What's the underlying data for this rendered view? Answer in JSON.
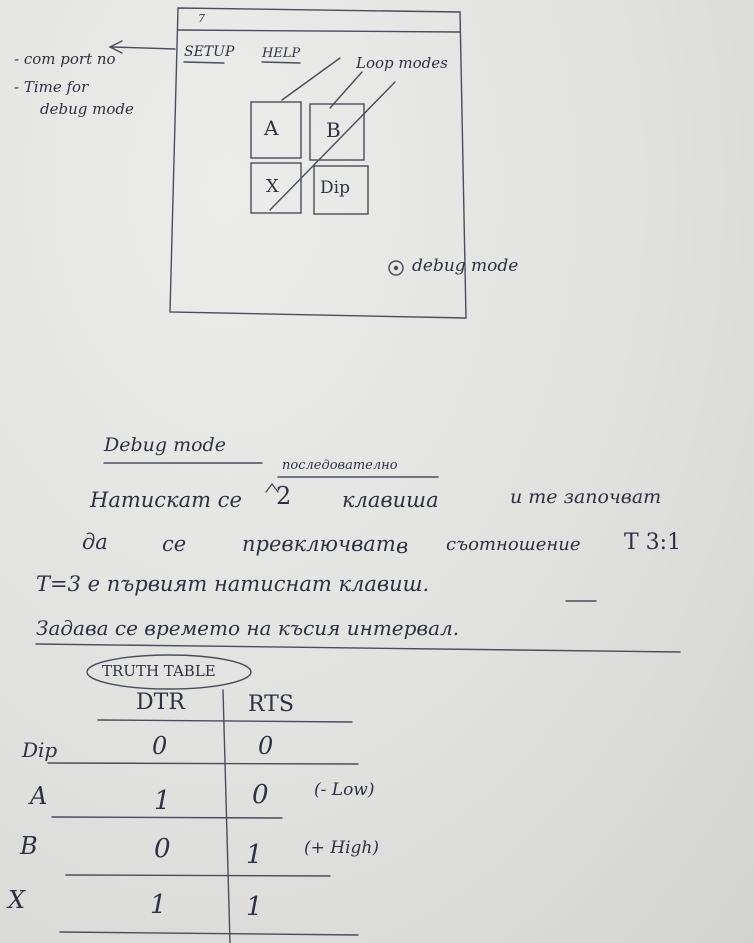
{
  "sketch": {
    "left_notes": [
      "- com port no",
      "- Time for",
      "debug mode"
    ],
    "window_mark": "7",
    "menu": [
      "SETUP",
      "HELP"
    ],
    "loop_modes_label": "Loop modes",
    "buttons": [
      "A",
      "B",
      "X",
      "Dip"
    ],
    "debug_option": "debug mode"
  },
  "notes": {
    "heading": "Debug mode",
    "insert_word": "последователно",
    "line1a": "Натискат се",
    "line1_num": "2",
    "line1b": "клавиша",
    "line1c": "и те започват",
    "line2a": "да",
    "line2b": "се",
    "line2c": "превключват",
    "line2d": "в",
    "line2e": "съотношение",
    "line2f": "T 3:1",
    "line3": "T=3 е първият натиснат клавиш.",
    "line4": "Задава се времето на късия интервал."
  },
  "truth_table": {
    "title": "TRUTH TABLE",
    "headers": [
      "DTR",
      "RTS"
    ],
    "rows": [
      {
        "label": "Dip",
        "dtr": "0",
        "rts": "0",
        "note": ""
      },
      {
        "label": "A",
        "dtr": "1",
        "rts": "0",
        "note": "(- Low)"
      },
      {
        "label": "B",
        "dtr": "0",
        "rts": "1",
        "note": "(+ High)"
      },
      {
        "label": "X",
        "dtr": "1",
        "rts": "1",
        "note": ""
      }
    ]
  }
}
